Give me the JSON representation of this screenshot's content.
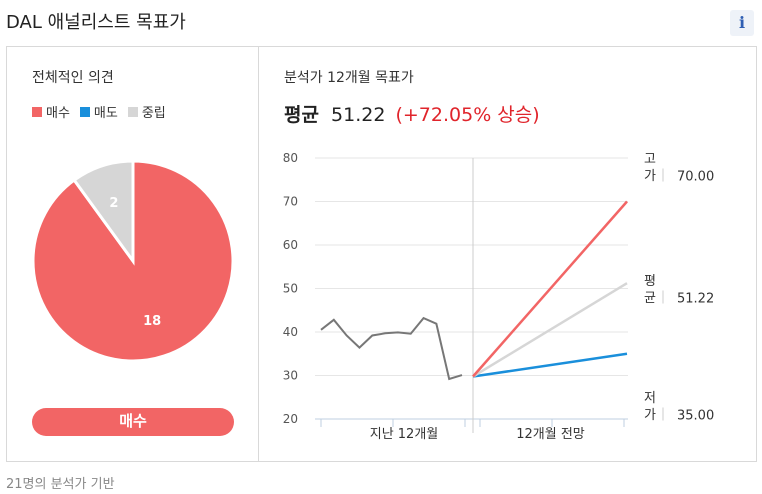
{
  "title": "DAL 애널리스트 목표가",
  "info_icon": {
    "name": "info-icon",
    "glyph": "i"
  },
  "consensus": {
    "heading": "전체적인 의견",
    "legend": [
      {
        "label": "매수",
        "color": "#f26565"
      },
      {
        "label": "매도",
        "color": "#1a8fdb"
      },
      {
        "label": "중립",
        "color": "#d6d6d6"
      }
    ],
    "button_label": "매수"
  },
  "target": {
    "heading": "분석가 12개월 목표가",
    "avg_label": "평균",
    "avg_value": "51.22",
    "avg_change": "(+72.05% 상승)",
    "high_label": "고가",
    "high_value": "70.00",
    "mean_label": "평균",
    "mean_value": "51.22",
    "low_label": "저가",
    "low_value": "35.00"
  },
  "chart_data": [
    {
      "type": "pie",
      "slices": [
        {
          "label": "매수",
          "value": 18,
          "color": "#f26565"
        },
        {
          "label": "매도",
          "value": 0,
          "color": "#1a8fdb"
        },
        {
          "label": "중립",
          "value": 2,
          "color": "#d6d6d6"
        }
      ],
      "data_labels": [
        "18",
        "2"
      ]
    },
    {
      "type": "line",
      "ylim": [
        20,
        80
      ],
      "yticks": [
        20,
        30,
        40,
        50,
        60,
        70,
        80
      ],
      "x_sections": [
        "지난 12개월",
        "12개월 전망"
      ],
      "history": [
        40.5,
        42.8,
        39.2,
        36.4,
        39.2,
        39.7,
        39.9,
        39.6,
        43.2,
        41.9,
        29.2,
        30.1
      ],
      "current_price": 29.77,
      "forecast": [
        {
          "label": "고가",
          "value": 70.0,
          "color": "#f26565"
        },
        {
          "label": "평균",
          "value": 51.22,
          "color": "#d6d6d6"
        },
        {
          "label": "저가",
          "value": 35.0,
          "color": "#1a8fdb"
        }
      ],
      "grid": true
    }
  ],
  "footer": "21명의 분석가 기반"
}
